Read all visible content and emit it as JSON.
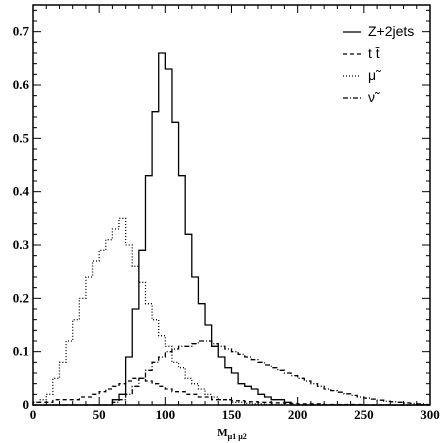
{
  "chart_data": {
    "type": "line",
    "title": "",
    "xlabel_main": "M",
    "xlabel_sub": "μ1 μ2",
    "ylabel": "",
    "xlim": [
      0,
      300
    ],
    "ylim": [
      0,
      0.75
    ],
    "x_ticks": [
      0,
      50,
      100,
      150,
      200,
      250,
      300
    ],
    "x_tick_labels": [
      "0",
      "50",
      "100",
      "150",
      "200",
      "250",
      "300"
    ],
    "y_ticks": [
      0,
      0.1,
      0.2,
      0.3,
      0.4,
      0.5,
      0.6,
      0.7
    ],
    "y_tick_labels": [
      "0",
      "0.1",
      "0.2",
      "0.3",
      "0.4",
      "0.5",
      "0.6",
      "0.7"
    ],
    "grid": false,
    "legend_position": "top-right",
    "bin_width": 5,
    "bin_edges_start": 0,
    "series": [
      {
        "name": "Z+2jets",
        "style": "solid",
        "color": "#000000",
        "values": [
          0,
          0,
          0,
          0,
          0,
          0,
          0,
          0,
          0,
          0,
          0,
          0,
          0.01,
          0.02,
          0.09,
          0.18,
          0.29,
          0.43,
          0.55,
          0.66,
          0.63,
          0.53,
          0.43,
          0.32,
          0.24,
          0.19,
          0.15,
          0.11,
          0.09,
          0.07,
          0.06,
          0.04,
          0.035,
          0.03,
          0.02,
          0.015,
          0.01,
          0.01,
          0.005,
          0,
          0,
          0,
          0,
          0,
          0,
          0,
          0,
          0,
          0,
          0,
          0,
          0,
          0,
          0,
          0,
          0,
          0,
          0,
          0,
          0
        ]
      },
      {
        "name": "t t̄",
        "style": "dashed",
        "color": "#000000",
        "values": [
          0.005,
          0.005,
          0.005,
          0.01,
          0.01,
          0.01,
          0.01,
          0.015,
          0.015,
          0.02,
          0.025,
          0.03,
          0.035,
          0.04,
          0.045,
          0.05,
          0.05,
          0.045,
          0.04,
          0.035,
          0.03,
          0.025,
          0.025,
          0.02,
          0.02,
          0.015,
          0.015,
          0.01,
          0.01,
          0.01,
          0.008,
          0.008,
          0.006,
          0.006,
          0.005,
          0.005,
          0.004,
          0.004,
          0.003,
          0.003,
          0.002,
          0.002,
          0.002,
          0.002,
          0.001,
          0.001,
          0.001,
          0.001,
          0.001,
          0.001,
          0,
          0,
          0,
          0,
          0,
          0,
          0,
          0,
          0,
          0
        ]
      },
      {
        "name": "μ̃",
        "style": "dotted",
        "color": "#000000",
        "values": [
          0.005,
          0.01,
          0.02,
          0.05,
          0.08,
          0.12,
          0.16,
          0.2,
          0.24,
          0.27,
          0.29,
          0.31,
          0.33,
          0.35,
          0.3,
          0.26,
          0.23,
          0.19,
          0.16,
          0.13,
          0.11,
          0.08,
          0.07,
          0.05,
          0.04,
          0.03,
          0.02,
          0.015,
          0.01,
          0.01,
          0.005,
          0.005,
          0.003,
          0.002,
          0.002,
          0.001,
          0.001,
          0.001,
          0,
          0,
          0,
          0,
          0,
          0,
          0,
          0,
          0,
          0,
          0,
          0,
          0,
          0,
          0,
          0,
          0,
          0,
          0,
          0,
          0,
          0
        ]
      },
      {
        "name": "ν̃",
        "style": "dashdot",
        "color": "#000000",
        "values": [
          0,
          0,
          0,
          0,
          0,
          0,
          0,
          0,
          0,
          0,
          0,
          0,
          0.005,
          0.01,
          0.02,
          0.035,
          0.05,
          0.065,
          0.08,
          0.09,
          0.1,
          0.105,
          0.11,
          0.11,
          0.115,
          0.12,
          0.12,
          0.115,
          0.11,
          0.105,
          0.1,
          0.095,
          0.09,
          0.085,
          0.08,
          0.075,
          0.07,
          0.065,
          0.06,
          0.055,
          0.05,
          0.045,
          0.04,
          0.035,
          0.03,
          0.027,
          0.024,
          0.021,
          0.018,
          0.015,
          0.013,
          0.011,
          0.009,
          0.007,
          0.006,
          0.005,
          0.004,
          0.003,
          0.002,
          0.001
        ]
      }
    ],
    "legend": [
      {
        "label": "Z+2jets",
        "style": "solid"
      },
      {
        "label": "t t̄",
        "style": "dashed"
      },
      {
        "label": "μ̃",
        "style": "dotted"
      },
      {
        "label": "ν̃",
        "style": "dashdot"
      }
    ]
  }
}
